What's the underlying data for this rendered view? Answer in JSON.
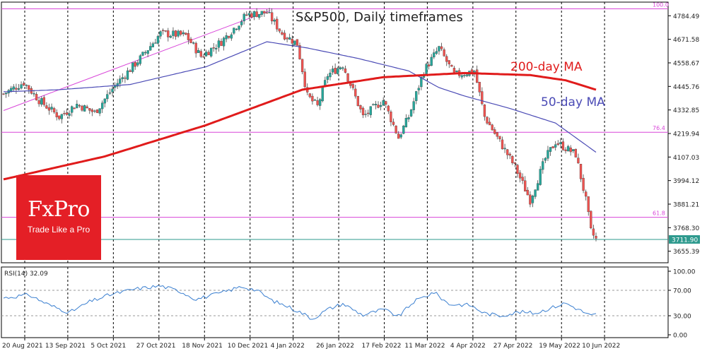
{
  "chart_data": [
    {
      "type": "candlestick",
      "title": "S&P500, Daily timeframes",
      "ylim": [
        3600,
        4850
      ],
      "y_ticks": [
        "4784.49",
        "4671.58",
        "4558.67",
        "4445.76",
        "4332.85",
        "4219.94",
        "4107.03",
        "3994.12",
        "3881.21",
        "3768.30",
        "3655.39"
      ],
      "x_ticks": [
        "20 Aug 2021",
        "13 Sep 2021",
        "5 Oct 2021",
        "27 Oct 2021",
        "18 Nov 2021",
        "10 Dec 2021",
        "4 Jan 2022",
        "26 Jan 2022",
        "17 Feb 2022",
        "11 Mar 2022",
        "4 Apr 2022",
        "27 Apr 2022",
        "19 May 2022",
        "10 Jun 2022"
      ],
      "x_tick_pos": [
        0,
        17,
        35,
        53,
        71,
        89,
        106,
        124,
        142,
        159,
        177,
        194,
        212,
        229
      ],
      "n_days": 235,
      "last_price": "3711.90",
      "price_path": [
        [
          0,
          4410
        ],
        [
          8,
          4465
        ],
        [
          14,
          4380
        ],
        [
          22,
          4300
        ],
        [
          29,
          4360
        ],
        [
          36,
          4320
        ],
        [
          44,
          4450
        ],
        [
          54,
          4580
        ],
        [
          62,
          4700
        ],
        [
          72,
          4690
        ],
        [
          78,
          4590
        ],
        [
          86,
          4660
        ],
        [
          96,
          4790
        ],
        [
          104,
          4800
        ],
        [
          110,
          4700
        ],
        [
          116,
          4650
        ],
        [
          120,
          4400
        ],
        [
          124,
          4350
        ],
        [
          128,
          4500
        ],
        [
          134,
          4550
        ],
        [
          142,
          4300
        ],
        [
          150,
          4380
        ],
        [
          156,
          4200
        ],
        [
          160,
          4300
        ],
        [
          166,
          4520
        ],
        [
          172,
          4630
        ],
        [
          178,
          4500
        ],
        [
          186,
          4520
        ],
        [
          190,
          4300
        ],
        [
          195,
          4200
        ],
        [
          202,
          4060
        ],
        [
          208,
          3900
        ],
        [
          214,
          4100
        ],
        [
          218,
          4180
        ],
        [
          226,
          4120
        ],
        [
          230,
          3900
        ],
        [
          232,
          3750
        ],
        [
          234,
          3711.9
        ]
      ],
      "ma_200": [
        [
          0,
          4000
        ],
        [
          40,
          4110
        ],
        [
          80,
          4260
        ],
        [
          118,
          4430
        ],
        [
          150,
          4490
        ],
        [
          182,
          4510
        ],
        [
          208,
          4500
        ],
        [
          222,
          4475
        ],
        [
          234,
          4430
        ]
      ],
      "ma_50": [
        [
          0,
          4420
        ],
        [
          22,
          4430
        ],
        [
          50,
          4455
        ],
        [
          80,
          4540
        ],
        [
          104,
          4660
        ],
        [
          120,
          4630
        ],
        [
          140,
          4580
        ],
        [
          160,
          4520
        ],
        [
          172,
          4440
        ],
        [
          182,
          4400
        ],
        [
          200,
          4340
        ],
        [
          218,
          4270
        ],
        [
          234,
          4130
        ]
      ],
      "ma_200_label": "200-day MA",
      "ma_50_label": "50-day MA",
      "ma_200_color": "#e01b1b",
      "ma_50_color": "#4a4ab5",
      "trend_line": [
        [
          0,
          4330
        ],
        [
          104,
          4810
        ]
      ],
      "levels": [
        {
          "price": 4818,
          "label": "100.0",
          "color": "#d946d9"
        },
        {
          "price": 4226,
          "label": "76.4",
          "color": "#d946d9"
        },
        {
          "price": 3818,
          "label": "61.8",
          "color": "#d946d9"
        },
        {
          "price": 3711.9,
          "label": "3711.90",
          "color": "#2e9a8e"
        }
      ],
      "candle_up_color": "#26a69a",
      "candle_down_color": "#ef5350"
    },
    {
      "type": "line",
      "title": "RSI(14) 32.09",
      "ylim": [
        0,
        100
      ],
      "y_ticks": [
        "100.00",
        "70.00",
        "30.00",
        "0.00"
      ],
      "guide_levels": [
        70,
        30
      ],
      "values": [
        [
          0,
          58
        ],
        [
          10,
          63
        ],
        [
          18,
          47
        ],
        [
          26,
          35
        ],
        [
          34,
          52
        ],
        [
          42,
          63
        ],
        [
          52,
          72
        ],
        [
          62,
          77
        ],
        [
          70,
          68
        ],
        [
          76,
          56
        ],
        [
          86,
          66
        ],
        [
          94,
          76
        ],
        [
          100,
          70
        ],
        [
          106,
          54
        ],
        [
          112,
          45
        ],
        [
          118,
          34
        ],
        [
          122,
          25
        ],
        [
          128,
          40
        ],
        [
          134,
          49
        ],
        [
          142,
          31
        ],
        [
          150,
          40
        ],
        [
          156,
          29
        ],
        [
          162,
          52
        ],
        [
          170,
          67
        ],
        [
          176,
          48
        ],
        [
          184,
          47
        ],
        [
          190,
          34
        ],
        [
          196,
          30
        ],
        [
          204,
          36
        ],
        [
          210,
          34
        ],
        [
          216,
          42
        ],
        [
          222,
          50
        ],
        [
          228,
          38
        ],
        [
          232,
          30
        ],
        [
          234,
          32
        ]
      ],
      "color": "#3a7fd0"
    }
  ],
  "logo": {
    "title": "FxPro",
    "subtitle": "Trade Like a Pro"
  }
}
